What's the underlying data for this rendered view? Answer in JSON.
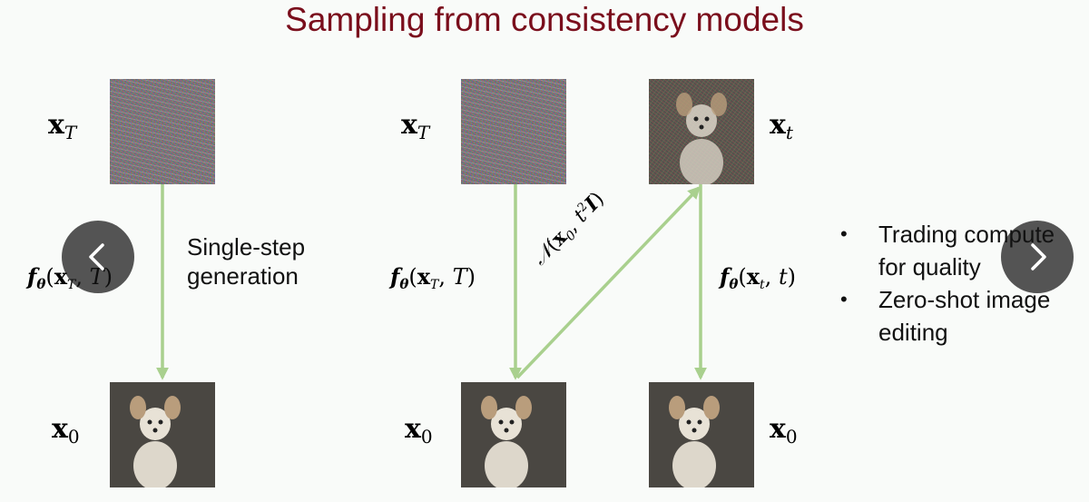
{
  "title": "Sampling from consistency models",
  "labels": {
    "single_step": [
      "Single-step",
      "generation"
    ]
  },
  "bullets": [
    [
      "Trading compute",
      "for quality"
    ],
    [
      "Zero-shot image",
      "editing"
    ]
  ],
  "colors": {
    "title": "#7a0e1c",
    "arrow": "#a9d08e",
    "nav_bg": "#1e1e1e"
  },
  "nav": {
    "prev_icon": "chevron-left-icon",
    "next_icon": "chevron-right-icon"
  }
}
